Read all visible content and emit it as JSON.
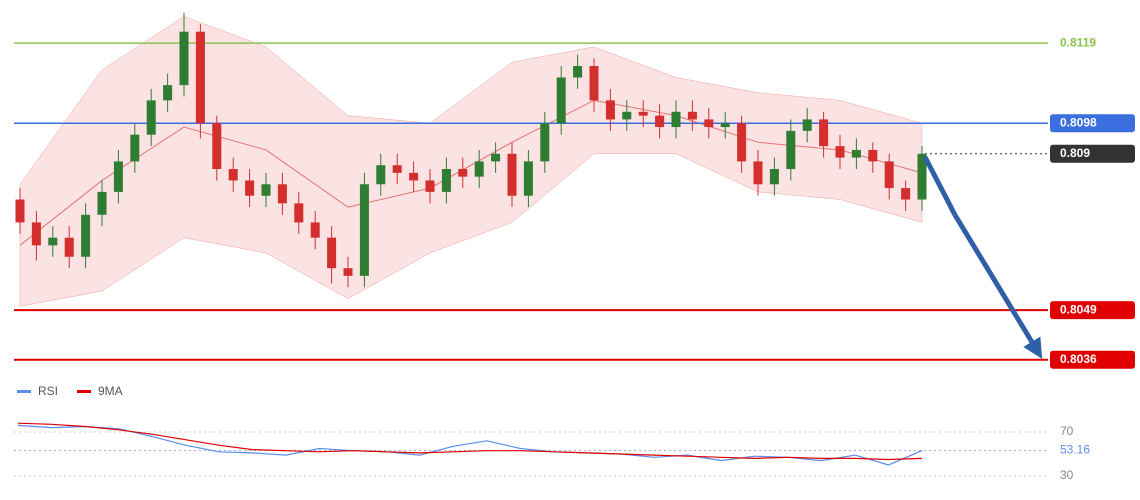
{
  "chart_data": [
    {
      "type": "candlestick",
      "open": [
        0.8078,
        0.8072,
        0.8066,
        0.8068,
        0.8063,
        0.8074,
        0.808,
        0.8088,
        0.8095,
        0.8104,
        0.8108,
        0.8122,
        0.8098,
        0.8086,
        0.8083,
        0.8079,
        0.8082,
        0.8077,
        0.8072,
        0.8068,
        0.806,
        0.8058,
        0.8082,
        0.8087,
        0.8085,
        0.8083,
        0.808,
        0.8086,
        0.8084,
        0.8088,
        0.809,
        0.8079,
        0.8088,
        0.8098,
        0.811,
        0.8113,
        0.8104,
        0.8099,
        0.8101,
        0.81,
        0.8097,
        0.8101,
        0.8099,
        0.8097,
        0.8098,
        0.8088,
        0.8082,
        0.8086,
        0.8096,
        0.8099,
        0.8092,
        0.8089,
        0.8091,
        0.8088,
        0.8081,
        0.8078
      ],
      "high": [
        0.8081,
        0.8075,
        0.8071,
        0.8071,
        0.8077,
        0.8083,
        0.8091,
        0.8098,
        0.8107,
        0.8111,
        0.8127,
        0.8124,
        0.81,
        0.8089,
        0.8086,
        0.8085,
        0.8085,
        0.808,
        0.8075,
        0.8071,
        0.8063,
        0.8085,
        0.809,
        0.809,
        0.8088,
        0.8086,
        0.8089,
        0.8089,
        0.8091,
        0.8093,
        0.8093,
        0.8091,
        0.8101,
        0.8113,
        0.8116,
        0.8115,
        0.8107,
        0.8104,
        0.8104,
        0.8103,
        0.8104,
        0.8104,
        0.8102,
        0.8101,
        0.81,
        0.8091,
        0.8089,
        0.8099,
        0.8102,
        0.8101,
        0.8095,
        0.8094,
        0.8093,
        0.809,
        0.8083,
        0.8092
      ],
      "low": [
        0.8069,
        0.8062,
        0.8063,
        0.806,
        0.806,
        0.8071,
        0.8077,
        0.8085,
        0.8092,
        0.8101,
        0.8105,
        0.8094,
        0.8083,
        0.808,
        0.8076,
        0.8076,
        0.8074,
        0.8069,
        0.8065,
        0.8056,
        0.8055,
        0.8055,
        0.8079,
        0.8082,
        0.808,
        0.8077,
        0.8077,
        0.8081,
        0.8081,
        0.8085,
        0.8076,
        0.8076,
        0.8085,
        0.8095,
        0.8107,
        0.8101,
        0.8096,
        0.8096,
        0.8097,
        0.8094,
        0.8094,
        0.8096,
        0.8094,
        0.8094,
        0.8085,
        0.8079,
        0.8079,
        0.8083,
        0.8093,
        0.8089,
        0.8086,
        0.8086,
        0.8085,
        0.8078,
        0.8075,
        0.8075
      ],
      "close": [
        0.8072,
        0.8066,
        0.8068,
        0.8063,
        0.8074,
        0.808,
        0.8088,
        0.8095,
        0.8104,
        0.8108,
        0.8122,
        0.8098,
        0.8086,
        0.8083,
        0.8079,
        0.8082,
        0.8077,
        0.8072,
        0.8068,
        0.806,
        0.8058,
        0.8082,
        0.8087,
        0.8085,
        0.8083,
        0.808,
        0.8086,
        0.8084,
        0.8088,
        0.809,
        0.8079,
        0.8088,
        0.8098,
        0.811,
        0.8113,
        0.8104,
        0.8099,
        0.8101,
        0.81,
        0.8097,
        0.8101,
        0.8099,
        0.8097,
        0.8098,
        0.8088,
        0.8082,
        0.8086,
        0.8096,
        0.8099,
        0.8092,
        0.8089,
        0.8091,
        0.8088,
        0.8081,
        0.8078,
        0.809
      ],
      "up_color": "#2e7d32",
      "down_color": "#d32f2f",
      "band": {
        "x": [
          0,
          5,
          10,
          15,
          20,
          25,
          30,
          35,
          40,
          45,
          50,
          55
        ],
        "upper": [
          0.8082,
          0.8112,
          0.8126,
          0.8118,
          0.81,
          0.8098,
          0.8114,
          0.8118,
          0.811,
          0.8106,
          0.8104,
          0.8098
        ],
        "middle": [
          0.8066,
          0.8083,
          0.8097,
          0.8091,
          0.8076,
          0.8081,
          0.8093,
          0.8104,
          0.81,
          0.8093,
          0.8091,
          0.8085
        ],
        "lower": [
          0.805,
          0.8054,
          0.8068,
          0.8064,
          0.8052,
          0.8064,
          0.8072,
          0.809,
          0.809,
          0.808,
          0.8078,
          0.8072
        ],
        "color": "#f8c8c8"
      },
      "ylim": [
        0.8032,
        0.8129
      ],
      "levels": [
        {
          "price": 0.8119,
          "color": "#8bc34a",
          "boxed": false
        },
        {
          "price": 0.8098,
          "color": "#3b6fe0",
          "boxed": true
        },
        {
          "price": 0.809,
          "color": "#333333",
          "boxed": true,
          "dotted": true
        },
        {
          "price": 0.8049,
          "color": "#e00000",
          "boxed": true
        },
        {
          "price": 0.8036,
          "color": "#e00000",
          "boxed": true
        }
      ]
    },
    {
      "type": "line",
      "series": [
        {
          "name": "RSI",
          "color": "#5b8def",
          "values": [
            76,
            74,
            75,
            73,
            66,
            58,
            52,
            51,
            49,
            55,
            53,
            52,
            49,
            57,
            62,
            55,
            52,
            51,
            50,
            47,
            49,
            44,
            48,
            47,
            44,
            49,
            40,
            53.16
          ]
        },
        {
          "name": "9MA",
          "color": "#e00000",
          "values": [
            78,
            77,
            75,
            72,
            68,
            63,
            58,
            54,
            53,
            52,
            53,
            52,
            51,
            52,
            53,
            53,
            52,
            51,
            50,
            49,
            48,
            47,
            46,
            47,
            46,
            46,
            45,
            46
          ]
        }
      ],
      "ylim": [
        20,
        80
      ],
      "yticks": [
        70,
        30
      ],
      "current": 53.16
    }
  ]
}
